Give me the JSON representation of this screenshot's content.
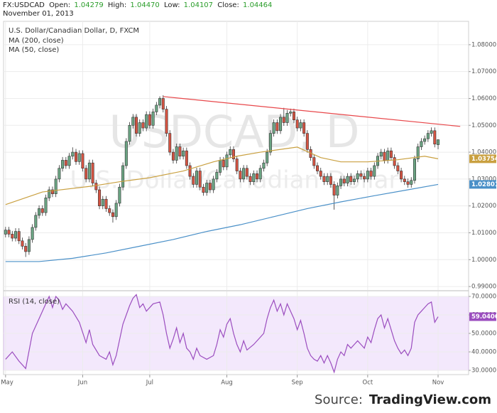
{
  "header": {
    "symbol": "FX:USDCAD",
    "fields": [
      {
        "label": "Open:",
        "value": "1.04279"
      },
      {
        "label": "High:",
        "value": "1.04470"
      },
      {
        "label": "Low:",
        "value": "1.04107"
      },
      {
        "label": "Close:",
        "value": "1.04464"
      }
    ],
    "date": "November 01, 2013"
  },
  "chart_data": [
    {
      "type": "candlestick",
      "title": "U.S. Dollar/Canadian Dollar, D, FXCM",
      "watermark": [
        "USDCAD, D",
        "U.S. Dollar/Canadian Dollar"
      ],
      "up_color": "#6ba583",
      "down_color": "#d75442",
      "grid": true,
      "xlim": [
        -0.6,
        138.1
      ],
      "xticks": [
        {
          "value": 0,
          "label": "May"
        },
        {
          "value": 23,
          "label": "Jun"
        },
        {
          "value": 43,
          "label": "Jul"
        },
        {
          "value": 66,
          "label": "Aug"
        },
        {
          "value": 87,
          "label": "Sep"
        },
        {
          "value": 108,
          "label": "Oct"
        },
        {
          "value": 129,
          "label": "Nov"
        }
      ],
      "ylim": [
        0.9887,
        1.0887
      ],
      "yticks": [
        {
          "value": 0.99,
          "label": "0.99000"
        },
        {
          "value": 1.0,
          "label": "1.00000"
        },
        {
          "value": 1.01,
          "label": "1.01000"
        },
        {
          "value": 1.02,
          "label": "1.02000"
        },
        {
          "value": 1.03,
          "label": "1.03000"
        },
        {
          "value": 1.04,
          "label": "1.04000"
        },
        {
          "value": 1.05,
          "label": "1.05000"
        },
        {
          "value": 1.06,
          "label": "1.06000"
        },
        {
          "value": 1.07,
          "label": "1.07000"
        },
        {
          "value": 1.08,
          "label": "1.08000"
        }
      ],
      "open": [
        1.0095,
        1.011,
        1.0095,
        1.008,
        1.0105,
        1.007,
        1.005,
        1.003,
        1.0075,
        1.012,
        1.0165,
        1.019,
        1.0175,
        1.023,
        1.026,
        1.0245,
        1.03,
        1.034,
        1.037,
        1.035,
        1.0385,
        1.04,
        1.0365,
        1.0395,
        1.034,
        1.03,
        1.036,
        1.0285,
        1.026,
        1.02,
        1.0225,
        1.019,
        1.0175,
        1.016,
        1.021,
        1.027,
        1.035,
        1.044,
        1.05,
        1.053,
        1.047,
        1.051,
        1.049,
        1.054,
        1.05,
        1.055,
        1.0575,
        1.06,
        1.056,
        1.047,
        1.04,
        1.037,
        1.042,
        1.0385,
        1.0405,
        1.035,
        1.031,
        1.028,
        1.033,
        1.027,
        1.025,
        1.0285,
        1.026,
        1.03,
        1.0325,
        1.037,
        1.0345,
        1.039,
        1.041,
        1.0375,
        1.033,
        1.03,
        1.034,
        1.031,
        1.029,
        1.032,
        1.03,
        1.034,
        1.036,
        1.04,
        1.047,
        1.051,
        1.048,
        1.053,
        1.051,
        1.0545,
        1.055,
        1.052,
        1.049,
        1.051,
        1.047,
        1.041,
        1.038,
        1.035,
        1.033,
        1.031,
        1.029,
        1.031,
        1.028,
        1.024,
        1.0275,
        1.03,
        1.0285,
        1.031,
        1.029,
        1.03,
        1.032,
        1.031,
        1.03,
        1.033,
        1.031,
        1.035,
        1.0385,
        1.04,
        1.037,
        1.0405,
        1.038,
        1.035,
        1.033,
        1.03,
        1.029,
        1.028,
        1.0295,
        1.0375,
        1.042,
        1.044,
        1.045,
        1.047,
        1.048,
        1.04279
      ],
      "high": [
        1.0122,
        1.0122,
        1.0107,
        1.0117,
        1.0117,
        1.0082,
        1.0062,
        1.0087,
        1.0132,
        1.0177,
        1.0202,
        1.0202,
        1.0242,
        1.0272,
        1.0272,
        1.0312,
        1.0352,
        1.0382,
        1.0382,
        1.0397,
        1.0418,
        1.0412,
        1.0407,
        1.0407,
        1.0352,
        1.0372,
        1.0372,
        1.0297,
        1.0272,
        1.0237,
        1.0237,
        1.0202,
        1.0187,
        1.0222,
        1.0282,
        1.0362,
        1.0452,
        1.0512,
        1.0542,
        1.0542,
        1.0522,
        1.0522,
        1.0552,
        1.0552,
        1.0562,
        1.0587,
        1.0608,
        1.0612,
        1.0572,
        1.0482,
        1.0412,
        1.0432,
        1.0432,
        1.0417,
        1.0417,
        1.0362,
        1.0322,
        1.0342,
        1.0342,
        1.0282,
        1.0297,
        1.0297,
        1.0312,
        1.0337,
        1.0382,
        1.0382,
        1.0402,
        1.0422,
        1.0422,
        1.0387,
        1.0342,
        1.0352,
        1.0352,
        1.0322,
        1.0332,
        1.0332,
        1.0352,
        1.0372,
        1.0412,
        1.0482,
        1.0522,
        1.0522,
        1.0542,
        1.0565,
        1.0557,
        1.0562,
        1.0562,
        1.0532,
        1.0522,
        1.0522,
        1.0482,
        1.0422,
        1.0392,
        1.0362,
        1.0342,
        1.0322,
        1.0322,
        1.0322,
        1.0292,
        1.0287,
        1.0312,
        1.0312,
        1.0322,
        1.0322,
        1.0312,
        1.0332,
        1.0332,
        1.0322,
        1.0342,
        1.0342,
        1.0362,
        1.0397,
        1.0412,
        1.0412,
        1.0417,
        1.0417,
        1.0392,
        1.0362,
        1.0342,
        1.0312,
        1.0302,
        1.0307,
        1.0387,
        1.0432,
        1.0452,
        1.0462,
        1.0482,
        1.0492,
        1.0492,
        1.0447
      ],
      "low": [
        1.0083,
        1.0083,
        1.0068,
        1.0068,
        1.0058,
        1.0038,
        1.001,
        1.0018,
        1.0063,
        1.0108,
        1.0153,
        1.0163,
        1.0163,
        1.0218,
        1.0233,
        1.0233,
        1.0288,
        1.0328,
        1.0338,
        1.0338,
        1.0373,
        1.0353,
        1.0353,
        1.0328,
        1.0288,
        1.0288,
        1.0273,
        1.0248,
        1.0188,
        1.0188,
        1.0178,
        1.0163,
        1.0138,
        1.0148,
        1.0198,
        1.0258,
        1.0338,
        1.0428,
        1.0488,
        1.0458,
        1.0458,
        1.0478,
        1.0478,
        1.0488,
        1.0488,
        1.0538,
        1.0563,
        1.0548,
        1.0458,
        1.0388,
        1.0358,
        1.0358,
        1.0373,
        1.0373,
        1.0338,
        1.0298,
        1.0268,
        1.0268,
        1.0258,
        1.0238,
        1.0238,
        1.0248,
        1.0248,
        1.0288,
        1.0313,
        1.0333,
        1.0333,
        1.0378,
        1.0363,
        1.0318,
        1.0288,
        1.0288,
        1.0298,
        1.0278,
        1.0278,
        1.0288,
        1.0288,
        1.0328,
        1.0348,
        1.0388,
        1.0458,
        1.0468,
        1.0468,
        1.0498,
        1.0498,
        1.0533,
        1.0508,
        1.0478,
        1.0478,
        1.0458,
        1.0398,
        1.0368,
        1.0338,
        1.0318,
        1.0298,
        1.0278,
        1.0278,
        1.0268,
        1.0186,
        1.0228,
        1.0263,
        1.0273,
        1.0273,
        1.0278,
        1.0278,
        1.0288,
        1.0298,
        1.0288,
        1.0288,
        1.0298,
        1.0298,
        1.0338,
        1.0373,
        1.0358,
        1.0358,
        1.0368,
        1.0338,
        1.0318,
        1.0288,
        1.0278,
        1.0268,
        1.0268,
        1.0283,
        1.0363,
        1.0408,
        1.0428,
        1.0438,
        1.0458,
        1.0418,
        1.04107
      ],
      "close": [
        1.011,
        1.0095,
        1.008,
        1.0105,
        1.007,
        1.005,
        1.003,
        1.0075,
        1.012,
        1.0165,
        1.019,
        1.0175,
        1.023,
        1.026,
        1.0245,
        1.03,
        1.034,
        1.037,
        1.035,
        1.0385,
        1.04,
        1.0365,
        1.0395,
        1.034,
        1.03,
        1.036,
        1.0285,
        1.026,
        1.02,
        1.0225,
        1.019,
        1.0175,
        1.016,
        1.021,
        1.027,
        1.035,
        1.044,
        1.05,
        1.053,
        1.047,
        1.051,
        1.049,
        1.054,
        1.05,
        1.055,
        1.0575,
        1.06,
        1.056,
        1.047,
        1.04,
        1.037,
        1.042,
        1.0385,
        1.0405,
        1.035,
        1.031,
        1.028,
        1.033,
        1.027,
        1.025,
        1.0285,
        1.026,
        1.03,
        1.0325,
        1.037,
        1.0345,
        1.039,
        1.041,
        1.0375,
        1.033,
        1.03,
        1.034,
        1.031,
        1.029,
        1.032,
        1.03,
        1.034,
        1.036,
        1.04,
        1.047,
        1.051,
        1.048,
        1.053,
        1.051,
        1.0545,
        1.055,
        1.052,
        1.049,
        1.051,
        1.047,
        1.041,
        1.038,
        1.035,
        1.033,
        1.031,
        1.029,
        1.031,
        1.028,
        1.024,
        1.0275,
        1.03,
        1.0285,
        1.031,
        1.029,
        1.03,
        1.032,
        1.031,
        1.03,
        1.033,
        1.031,
        1.035,
        1.0385,
        1.04,
        1.037,
        1.0405,
        1.038,
        1.035,
        1.033,
        1.03,
        1.029,
        1.028,
        1.0295,
        1.0375,
        1.042,
        1.044,
        1.045,
        1.047,
        1.048,
        1.043,
        1.04464
      ],
      "series": [
        {
          "name": "MA (200, close)",
          "color": "#4a90c8",
          "x": [
            0,
            10,
            20,
            30,
            40,
            50,
            60,
            70,
            80,
            90,
            100,
            110,
            120,
            129
          ],
          "values": [
            0.9993,
            0.9993,
            1.0005,
            1.0025,
            1.005,
            1.0075,
            1.0105,
            1.013,
            1.016,
            1.019,
            1.0215,
            1.0238,
            1.026,
            1.02801
          ]
        },
        {
          "name": "MA (50, close)",
          "color": "#c9a040",
          "x": [
            0,
            11,
            26,
            34,
            43,
            53,
            62,
            69,
            76,
            87,
            94,
            100,
            108,
            117,
            125,
            129
          ],
          "values": [
            1.0205,
            1.0252,
            1.0274,
            1.029,
            1.0305,
            1.033,
            1.0364,
            1.0385,
            1.04,
            1.0419,
            1.038,
            1.0364,
            1.0364,
            1.0372,
            1.0385,
            1.03754
          ]
        }
      ],
      "trendlines": [
        {
          "color": "#e8474a",
          "x": [
            47,
            135.6
          ],
          "values": [
            1.0607,
            1.0496
          ]
        }
      ]
    },
    {
      "type": "line",
      "xlim": [
        -0.6,
        138.1
      ],
      "ylim": [
        27.7,
        72.7
      ],
      "band": [
        30,
        70
      ],
      "band_color": "#f3e8fc",
      "grid": true,
      "yticks": [
        {
          "value": 30,
          "label": "30.0000"
        },
        {
          "value": 40,
          "label": "40.0000"
        },
        {
          "value": 50,
          "label": "50.0000"
        },
        {
          "value": 60,
          "label": "60.0000"
        },
        {
          "value": 70,
          "label": "70.0000"
        }
      ],
      "series": [
        {
          "name": "RSI (14, close)",
          "color": "#9b4dbf",
          "x": [
            0,
            2,
            4,
            6,
            8,
            10,
            12,
            13,
            14,
            15,
            16,
            17,
            18,
            20,
            22,
            24,
            25,
            26,
            28,
            30,
            31,
            32,
            33,
            35,
            37,
            38,
            39,
            40,
            41,
            42,
            44,
            46,
            47,
            48,
            49,
            50,
            51,
            52,
            53,
            54,
            55,
            56,
            57,
            58,
            60,
            62,
            63,
            64,
            65,
            66,
            67,
            68,
            69,
            70,
            71,
            72,
            74,
            76,
            77,
            78,
            79,
            80,
            81,
            82,
            83,
            84,
            85,
            86,
            87,
            88,
            89,
            90,
            91,
            92,
            93,
            94,
            95,
            96,
            97,
            98,
            99,
            100,
            101,
            102,
            103,
            104,
            105,
            106,
            107,
            108,
            109,
            110,
            111,
            112,
            113,
            114,
            115,
            116,
            117,
            118,
            119,
            120,
            121,
            122,
            123,
            124,
            125,
            126,
            127,
            128,
            129
          ],
          "values": [
            36,
            40,
            35,
            31,
            50,
            58,
            66,
            70,
            64,
            70,
            68,
            63,
            66,
            62,
            56,
            45,
            52,
            44,
            38,
            36,
            40,
            33,
            38,
            55,
            65,
            69,
            71,
            64,
            66,
            62,
            66,
            67,
            60,
            50,
            42,
            47,
            53,
            45,
            50,
            42,
            40,
            36,
            42,
            38,
            36,
            38,
            44,
            52,
            48,
            55,
            58,
            50,
            44,
            40,
            46,
            41,
            44,
            48,
            50,
            58,
            64,
            68,
            62,
            66,
            60,
            66,
            62,
            58,
            52,
            57,
            50,
            42,
            38,
            36,
            35,
            38,
            34,
            38,
            34,
            29,
            36,
            40,
            38,
            44,
            42,
            44,
            46,
            44,
            42,
            48,
            45,
            52,
            58,
            60,
            53,
            58,
            52,
            46,
            42,
            39,
            41,
            38,
            42,
            56,
            60,
            62,
            64,
            66,
            67,
            56,
            59.0406
          ]
        }
      ]
    }
  ],
  "source": {
    "prefix": "Source:",
    "brand": "TradingView.com"
  }
}
